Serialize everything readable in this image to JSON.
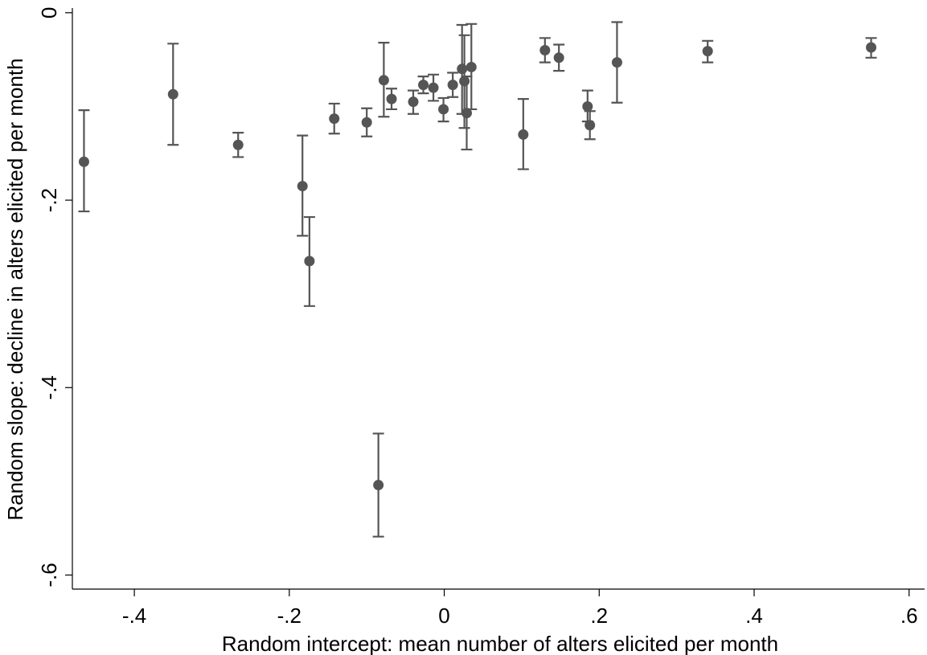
{
  "chart_data": {
    "type": "scatter",
    "xlabel": "Random intercept: mean number of alters elicited per month",
    "ylabel": "Random slope: decline in alters elicited per month",
    "xlim": [
      -0.48,
      0.62
    ],
    "ylim": [
      -0.615,
      0.005
    ],
    "x_ticks": [
      -0.4,
      -0.2,
      0,
      0.2,
      0.4,
      0.6
    ],
    "x_tick_labels": [
      "-.4",
      "-.2",
      "0",
      ".2",
      ".4",
      ".6"
    ],
    "y_ticks": [
      0,
      -0.2,
      -0.4,
      -0.6
    ],
    "y_tick_labels": [
      "0",
      "-.2",
      "-.4",
      "-.6"
    ],
    "grid": false,
    "marker_color": "#555555",
    "error_bar_color": "#555555",
    "points": [
      {
        "x": -0.465,
        "y": -0.159,
        "lo": -0.212,
        "hi": -0.104
      },
      {
        "x": -0.35,
        "y": -0.087,
        "lo": -0.141,
        "hi": -0.033
      },
      {
        "x": -0.266,
        "y": -0.141,
        "lo": -0.154,
        "hi": -0.128
      },
      {
        "x": -0.183,
        "y": -0.185,
        "lo": -0.238,
        "hi": -0.131
      },
      {
        "x": -0.174,
        "y": -0.265,
        "lo": -0.313,
        "hi": -0.218
      },
      {
        "x": -0.142,
        "y": -0.113,
        "lo": -0.129,
        "hi": -0.097
      },
      {
        "x": -0.1,
        "y": -0.117,
        "lo": -0.132,
        "hi": -0.102
      },
      {
        "x": -0.085,
        "y": -0.504,
        "lo": -0.559,
        "hi": -0.449
      },
      {
        "x": -0.078,
        "y": -0.072,
        "lo": -0.111,
        "hi": -0.032
      },
      {
        "x": -0.068,
        "y": -0.092,
        "lo": -0.103,
        "hi": -0.081
      },
      {
        "x": -0.04,
        "y": -0.095,
        "lo": -0.108,
        "hi": -0.083
      },
      {
        "x": -0.027,
        "y": -0.077,
        "lo": -0.086,
        "hi": -0.068
      },
      {
        "x": -0.014,
        "y": -0.08,
        "lo": -0.094,
        "hi": -0.066
      },
      {
        "x": -0.001,
        "y": -0.103,
        "lo": -0.116,
        "hi": -0.091
      },
      {
        "x": 0.011,
        "y": -0.077,
        "lo": -0.09,
        "hi": -0.064
      },
      {
        "x": 0.023,
        "y": -0.06,
        "lo": -0.108,
        "hi": -0.013
      },
      {
        "x": 0.026,
        "y": -0.073,
        "lo": -0.123,
        "hi": -0.024
      },
      {
        "x": 0.029,
        "y": -0.107,
        "lo": -0.146,
        "hi": -0.068
      },
      {
        "x": 0.035,
        "y": -0.058,
        "lo": -0.103,
        "hi": -0.012
      },
      {
        "x": 0.102,
        "y": -0.13,
        "lo": -0.167,
        "hi": -0.092
      },
      {
        "x": 0.13,
        "y": -0.04,
        "lo": -0.053,
        "hi": -0.027
      },
      {
        "x": 0.148,
        "y": -0.048,
        "lo": -0.062,
        "hi": -0.034
      },
      {
        "x": 0.185,
        "y": -0.1,
        "lo": -0.116,
        "hi": -0.083
      },
      {
        "x": 0.188,
        "y": -0.12,
        "lo": -0.135,
        "hi": -0.105
      },
      {
        "x": 0.223,
        "y": -0.053,
        "lo": -0.096,
        "hi": -0.01
      },
      {
        "x": 0.34,
        "y": -0.041,
        "lo": -0.053,
        "hi": -0.03
      },
      {
        "x": 0.551,
        "y": -0.037,
        "lo": -0.048,
        "hi": -0.027
      }
    ]
  }
}
